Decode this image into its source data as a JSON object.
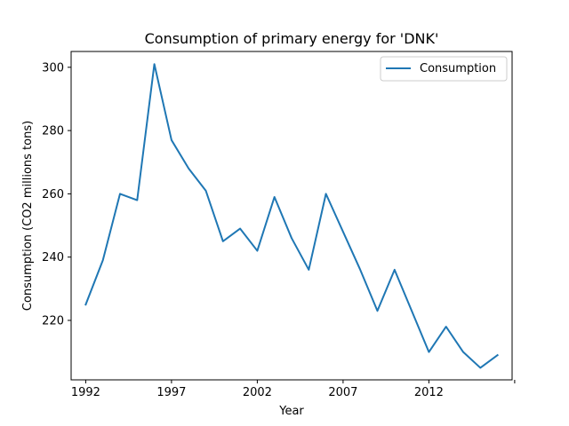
{
  "chart_data": {
    "type": "line",
    "title": "Consumption of primary energy for 'DNK'",
    "xlabel": "Year",
    "ylabel": "Consumption (CO2 millions tons)",
    "xlim": [
      1991.15,
      2016.85
    ],
    "ylim": [
      201.2,
      305.0
    ],
    "xticks": [
      1992,
      1997,
      2002,
      2007,
      2012,
      2017
    ],
    "xtick_labels": [
      "1992",
      "1997",
      "2002",
      "2007",
      "2012",
      ""
    ],
    "yticks": [
      220,
      240,
      260,
      280,
      300
    ],
    "grid": false,
    "legend_position": "top-right",
    "series": [
      {
        "name": "Consumption",
        "color": "#1f77b4",
        "x": [
          1992,
          1993,
          1994,
          1995,
          1996,
          1997,
          1998,
          1999,
          2000,
          2001,
          2002,
          2003,
          2004,
          2005,
          2006,
          2007,
          2008,
          2009,
          2010,
          2011,
          2012,
          2013,
          2014,
          2015,
          2016
        ],
        "y": [
          225,
          239,
          260,
          258,
          301,
          277,
          268,
          261,
          245,
          249,
          242,
          259,
          246,
          236,
          260,
          248,
          236,
          223,
          236,
          223,
          210,
          218,
          210,
          205,
          209
        ]
      }
    ]
  }
}
